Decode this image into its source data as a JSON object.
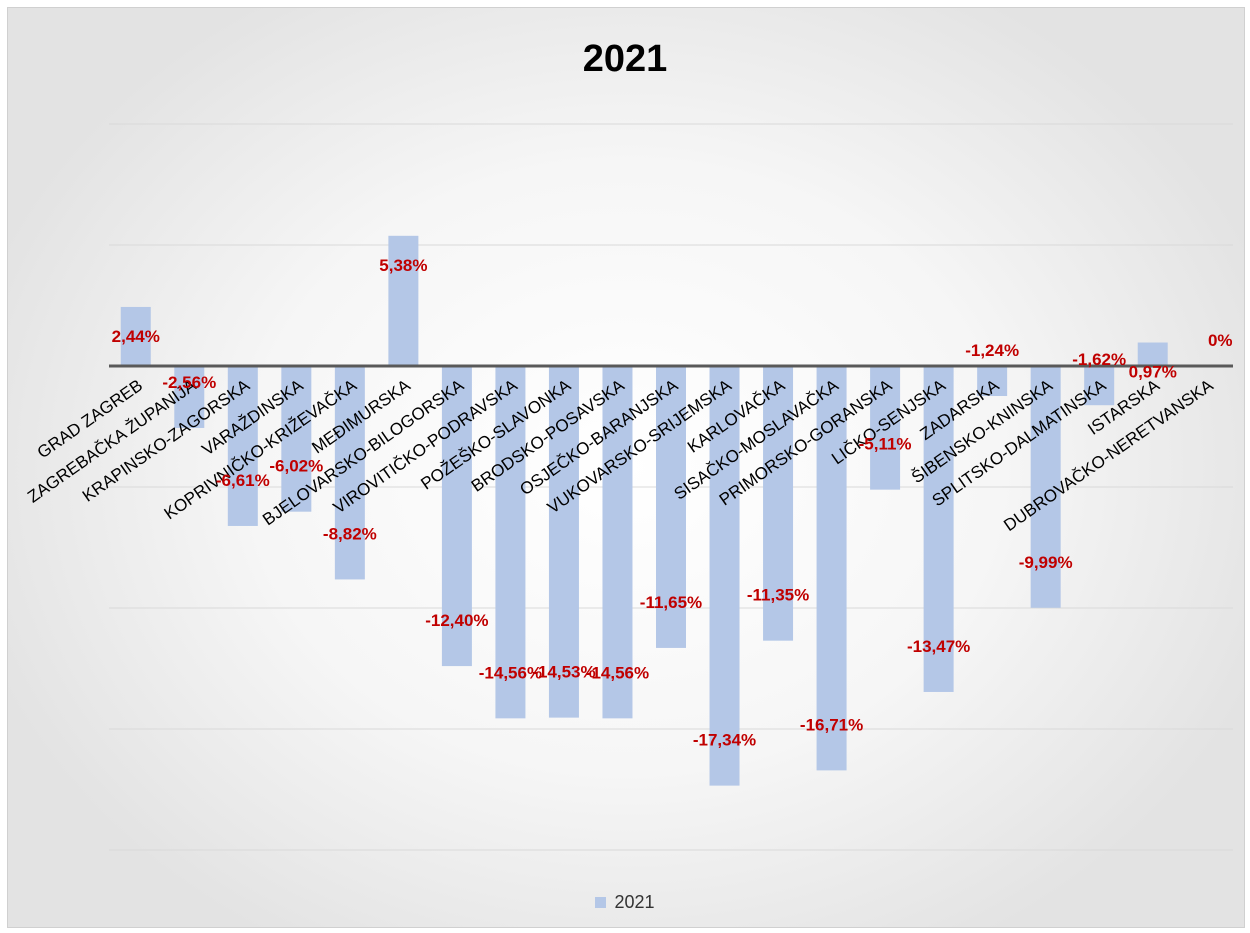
{
  "chart_data": {
    "type": "bar",
    "title": "2021",
    "categories": [
      "GRAD ZAGREB",
      "ZAGREBAČKA ŽUPANIJA",
      "KRAPINSKO-ZAGORSKA",
      "VARAŽDINSKA",
      "KOPRIVNIČKO-KRIŽEVAČKA",
      "MEĐIMURSKA",
      "BJELOVARSKO-BILOGORSKA",
      "VIROVITIČKO-PODRAVSKA",
      "POŽEŠKO-SLAVONKA",
      "BRODSKO-POSAVSKA",
      "OSJEČKO-BARANJSKA",
      "VUKOVARSKO-SRIJEMSKA",
      "KARLOVAČKA",
      "SISAČKO-MOSLAVAČKA",
      "PRIMORSKO-GORANSKA",
      "LIČKO-SENJSKA",
      "ZADARSKA",
      "ŠIBENSKO-KNINSKA",
      "SPLITSKO-DALMATINSKA",
      "ISTARSKA",
      "DUBROVAČKO-NERETVANSKA"
    ],
    "series": [
      {
        "name": "2021",
        "values": [
          2.44,
          -2.56,
          -6.61,
          -6.02,
          -8.82,
          5.38,
          -12.4,
          -14.56,
          -14.53,
          -14.56,
          -11.65,
          -17.34,
          -11.35,
          -16.71,
          -5.11,
          -13.47,
          -1.24,
          -9.99,
          -1.62,
          0.97,
          0
        ],
        "labels": [
          "2,44%",
          "-2,56%",
          "-6,61%",
          "-6,02%",
          "-8,82%",
          "5,38%",
          "-12,40%",
          "-14,56%",
          "-14,53%",
          "-14,56%",
          "-11,65%",
          "-17,34%",
          "-11,35%",
          "-16,71%",
          "-5,11%",
          "-13,47%",
          "-1,24%",
          "-9,99%",
          "-1,62%",
          "0,97%",
          "0%"
        ]
      }
    ],
    "ylim": [
      -20,
      10
    ],
    "grid": true,
    "legend": "bottom",
    "colors": {
      "bar": "#b4c7e7",
      "label": "#c00000",
      "axis": "#595959",
      "grid": "#d9d9d9"
    }
  }
}
